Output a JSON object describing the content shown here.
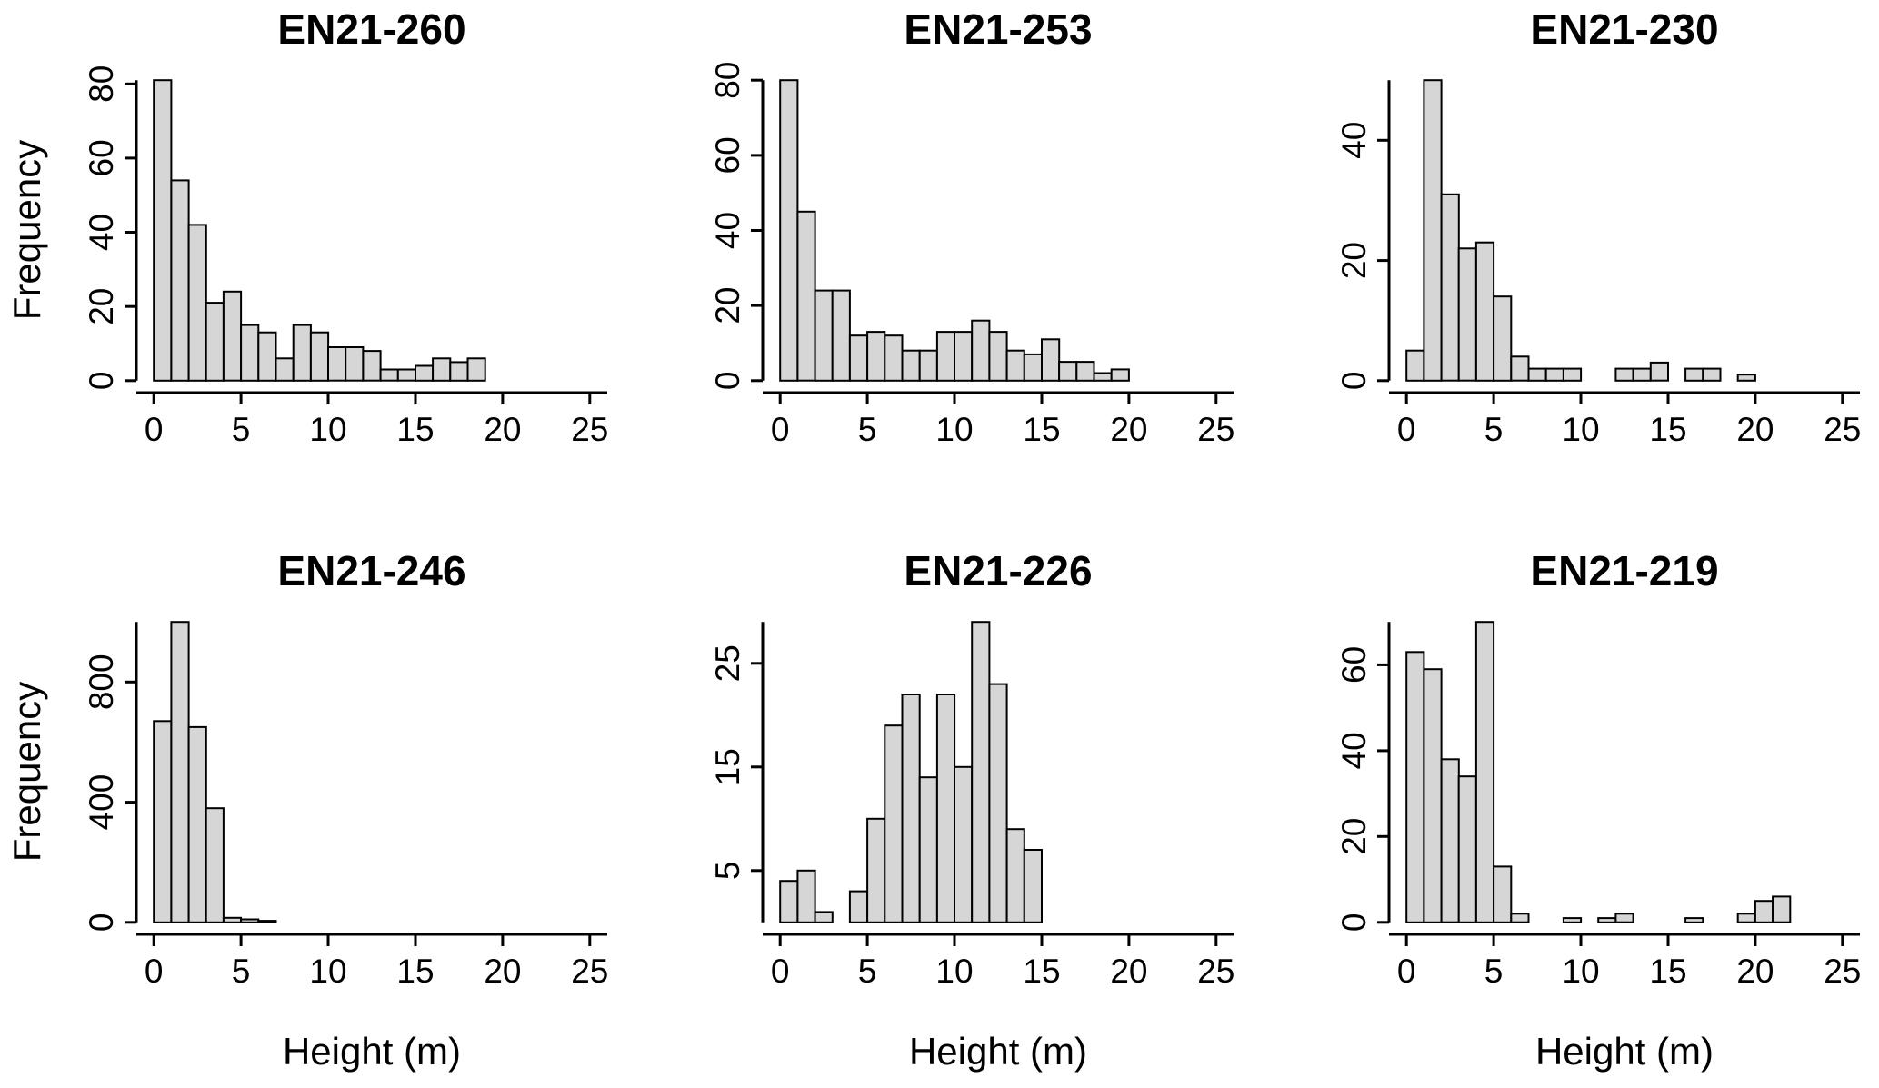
{
  "figure": {
    "background": "#ffffff"
  },
  "style": {
    "bar_fill": "#d6d6d6",
    "bar_stroke": "#000000",
    "axis_color": "#000000",
    "text_color": "#000000"
  },
  "chart_data": [
    {
      "type": "bar",
      "title": "EN21-260",
      "xlabel": "",
      "ylabel": "Frequency",
      "x_start": 0,
      "bin_width": 1,
      "values": [
        81,
        54,
        42,
        21,
        24,
        15,
        13,
        6,
        15,
        13,
        9,
        9,
        8,
        3,
        3,
        4,
        6,
        5,
        6
      ],
      "xlim": [
        0,
        25
      ],
      "ylim": [
        0,
        81
      ],
      "xticks": [
        0,
        5,
        10,
        15,
        20,
        25
      ],
      "yticks": [
        0,
        20,
        40,
        60,
        80
      ],
      "grid": false,
      "legend": "none"
    },
    {
      "type": "bar",
      "title": "EN21-253",
      "xlabel": "",
      "ylabel": "",
      "x_start": 0,
      "bin_width": 1,
      "values": [
        80,
        45,
        24,
        24,
        12,
        13,
        12,
        8,
        8,
        13,
        13,
        16,
        13,
        8,
        7,
        11,
        5,
        5,
        2,
        3
      ],
      "xlim": [
        0,
        25
      ],
      "ylim": [
        0,
        80
      ],
      "xticks": [
        0,
        5,
        10,
        15,
        20,
        25
      ],
      "yticks": [
        0,
        20,
        40,
        60,
        80
      ],
      "grid": false,
      "legend": "none"
    },
    {
      "type": "bar",
      "title": "EN21-230",
      "xlabel": "",
      "ylabel": "",
      "x_start": 0,
      "bin_width": 1,
      "values": [
        5,
        50,
        31,
        22,
        23,
        14,
        4,
        2,
        2,
        2,
        0,
        0,
        2,
        2,
        3,
        0,
        2,
        2,
        0,
        1
      ],
      "xlim": [
        0,
        25
      ],
      "ylim": [
        0,
        50
      ],
      "xticks": [
        0,
        5,
        10,
        15,
        20,
        25
      ],
      "yticks": [
        0,
        20,
        40
      ],
      "grid": false,
      "legend": "none"
    },
    {
      "type": "bar",
      "title": "EN21-246",
      "xlabel": "Height (m)",
      "ylabel": "Frequency",
      "x_start": 0,
      "bin_width": 1,
      "values": [
        670,
        1000,
        650,
        380,
        15,
        10,
        5
      ],
      "xlim": [
        0,
        25
      ],
      "ylim": [
        0,
        1000
      ],
      "xticks": [
        0,
        5,
        10,
        15,
        20,
        25
      ],
      "yticks": [
        0,
        400,
        800
      ],
      "grid": false,
      "legend": "none"
    },
    {
      "type": "bar",
      "title": "EN21-226",
      "xlabel": "Height (m)",
      "ylabel": "",
      "x_start": 0,
      "bin_width": 1,
      "values": [
        4,
        5,
        1,
        0,
        3,
        10,
        19,
        22,
        14,
        22,
        15,
        29,
        23,
        9,
        7
      ],
      "xlim": [
        0,
        25
      ],
      "ylim": [
        0,
        29
      ],
      "xticks": [
        0,
        5,
        10,
        15,
        20,
        25
      ],
      "yticks": [
        5,
        15,
        25
      ],
      "grid": false,
      "legend": "none"
    },
    {
      "type": "bar",
      "title": "EN21-219",
      "xlabel": "Height (m)",
      "ylabel": "",
      "x_start": 0,
      "bin_width": 1,
      "values": [
        63,
        59,
        38,
        34,
        70,
        13,
        2,
        0,
        0,
        1,
        0,
        1,
        2,
        0,
        0,
        0,
        1,
        0,
        0,
        2,
        5,
        6
      ],
      "xlim": [
        0,
        25
      ],
      "ylim": [
        0,
        70
      ],
      "xticks": [
        0,
        5,
        10,
        15,
        20,
        25
      ],
      "yticks": [
        0,
        20,
        40,
        60
      ],
      "grid": false,
      "legend": "none"
    }
  ]
}
